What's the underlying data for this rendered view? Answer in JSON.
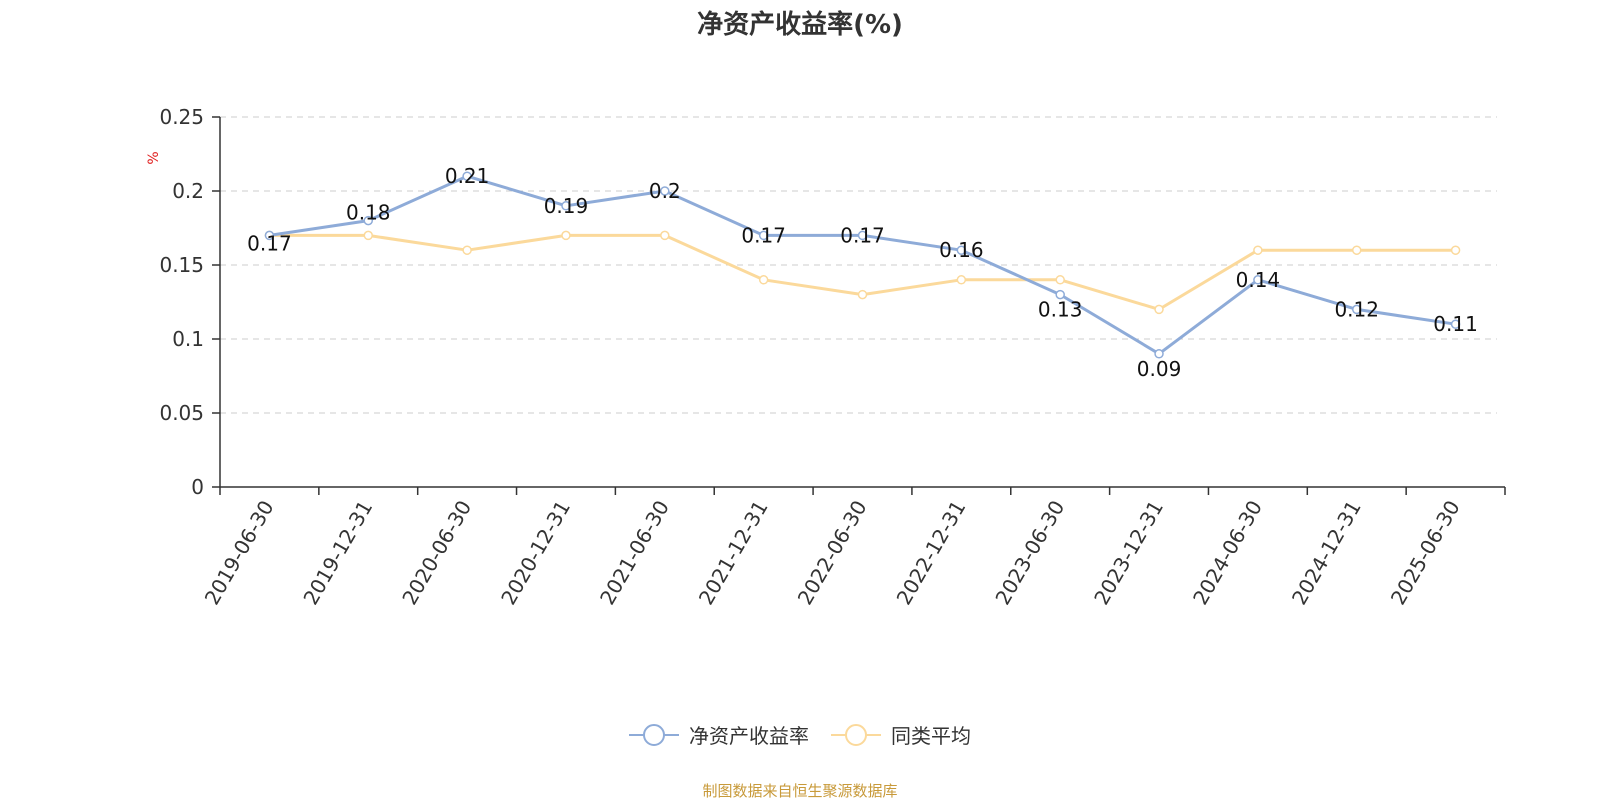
{
  "chart_data": {
    "type": "line",
    "title": "净资产收益率(%)",
    "ylabel": "%",
    "xlabel": "",
    "categories": [
      "2019-06-30",
      "2019-12-31",
      "2020-06-30",
      "2020-12-31",
      "2021-06-30",
      "2021-12-31",
      "2022-06-30",
      "2022-12-31",
      "2023-06-30",
      "2023-12-31",
      "2024-06-30",
      "2024-12-31",
      "2025-06-30"
    ],
    "ylim": [
      0,
      0.25
    ],
    "yticks": [
      "0",
      "0.05",
      "0.1",
      "0.15",
      "0.2",
      "0.25"
    ],
    "grid": true,
    "legend_position": "bottom",
    "series": [
      {
        "name": "净资产收益率",
        "color": "#8eabd8",
        "values": [
          0.17,
          0.18,
          0.21,
          0.19,
          0.2,
          0.17,
          0.17,
          0.16,
          0.13,
          0.09,
          0.14,
          0.12,
          0.11
        ],
        "labels": [
          "0.17",
          "0.18",
          "0.21",
          "0.19",
          "0.2",
          "0.17",
          "0.17",
          "0.16",
          "0.13",
          "0.09",
          "0.14",
          "0.12",
          "0.11"
        ]
      },
      {
        "name": "同类平均",
        "color": "#fbd99b",
        "values": [
          0.17,
          0.17,
          0.16,
          0.17,
          0.17,
          0.14,
          0.13,
          0.14,
          0.14,
          0.12,
          0.16,
          0.16,
          0.16
        ]
      }
    ]
  },
  "footer": {
    "source": "制图数据来自恒生聚源数据库"
  }
}
